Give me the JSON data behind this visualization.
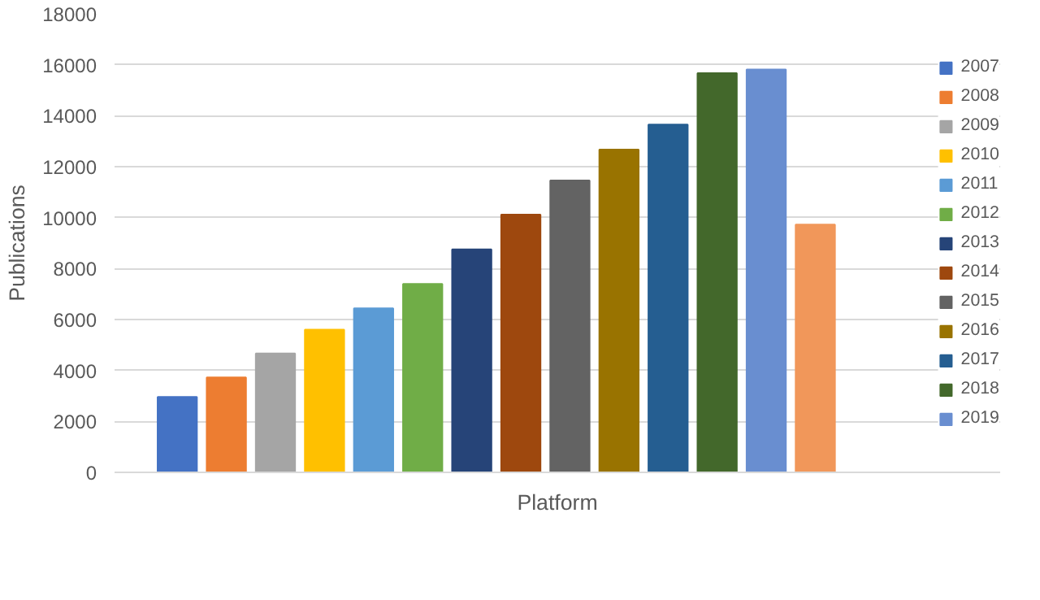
{
  "chart_data": {
    "type": "bar",
    "xlabel": "Platform",
    "ylabel": "Publications",
    "categories": [
      null
    ],
    "ylim": [
      0,
      18000
    ],
    "yticks": [
      0,
      2000,
      4000,
      6000,
      8000,
      10000,
      12000,
      14000,
      16000,
      18000
    ],
    "grid": "y",
    "legend": "right",
    "series": [
      {
        "name": "2007",
        "color": "#4472c4",
        "values": [
          2960
        ]
      },
      {
        "name": "2008",
        "color": "#ed7d31",
        "values": [
          3730
        ]
      },
      {
        "name": "2009",
        "color": "#a5a5a5",
        "values": [
          4670
        ]
      },
      {
        "name": "2010",
        "color": "#ffc000",
        "values": [
          5600
        ]
      },
      {
        "name": "2011",
        "color": "#5b9bd5",
        "values": [
          6440
        ]
      },
      {
        "name": "2012",
        "color": "#70ad47",
        "values": [
          7400
        ]
      },
      {
        "name": "2013",
        "color": "#264478",
        "values": [
          8750
        ]
      },
      {
        "name": "2014",
        "color": "#9e480e",
        "values": [
          10120
        ]
      },
      {
        "name": "2015",
        "color": "#636363",
        "values": [
          11460
        ]
      },
      {
        "name": "2016",
        "color": "#997300",
        "values": [
          12670
        ]
      },
      {
        "name": "2017",
        "color": "#255e91",
        "values": [
          13650
        ]
      },
      {
        "name": "2018",
        "color": "#43682b",
        "values": [
          15670
        ]
      },
      {
        "name": "2019",
        "color": "#698ed0",
        "values": [
          15810
        ]
      },
      {
        "color": "#f1975a",
        "values": [
          9730
        ]
      }
    ]
  }
}
